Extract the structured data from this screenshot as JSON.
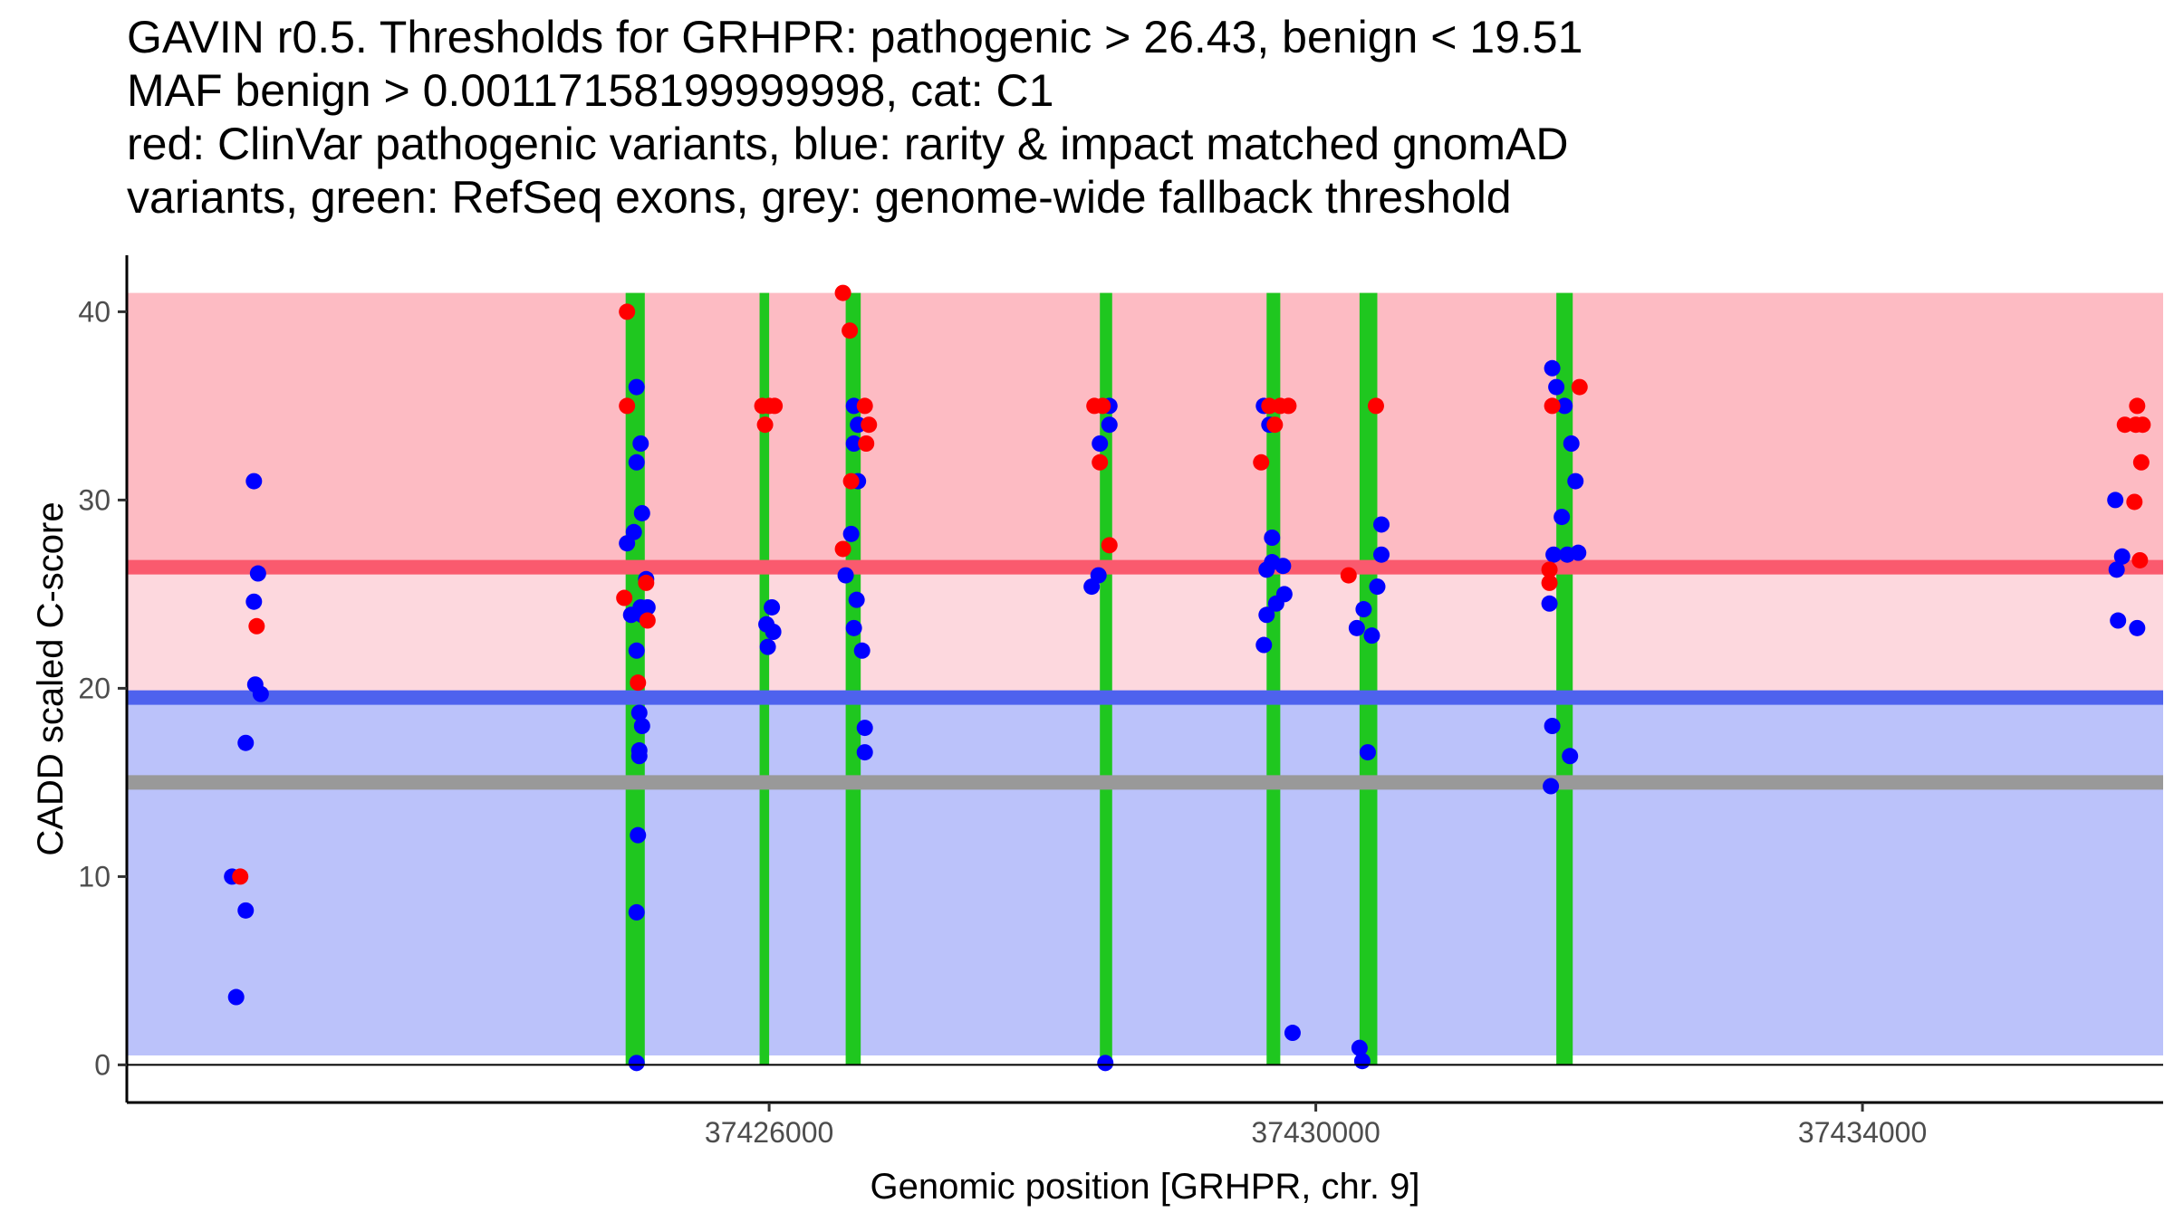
{
  "chart_data": {
    "type": "scatter",
    "title_lines": [
      "GAVIN r0.5. Thresholds for GRHPR: pathogenic > 26.43, benign < 19.51",
      "MAF benign > 0.00117158199999998, cat: C1",
      "red: ClinVar pathogenic variants, blue: rarity & impact matched gnomAD",
      "variants, green: RefSeq exons, grey: genome-wide fallback threshold"
    ],
    "xlabel": "Genomic position [GRHPR, chr. 9]",
    "ylabel": "CADD scaled C-score",
    "xlim": [
      37421300,
      37436200
    ],
    "ylim": [
      -2,
      43
    ],
    "x_ticks": [
      37426000,
      37430000,
      37434000
    ],
    "x_tick_labels": [
      "37426000",
      "37430000",
      "37434000"
    ],
    "y_ticks": [
      0,
      10,
      20,
      30,
      40
    ],
    "y_tick_labels": [
      "0",
      "10",
      "20",
      "30",
      "40"
    ],
    "regions": {
      "pathogenic": {
        "from": 26.43,
        "to": 41,
        "color": "#fdbbc3"
      },
      "middle": {
        "from": 19.51,
        "to": 26.43,
        "color": "#fdd8de"
      },
      "benign": {
        "from": 0.5,
        "to": 19.51,
        "color": "#bbc2fa"
      }
    },
    "threshold_lines": [
      {
        "name": "pathogenic-threshold",
        "y": 26.43,
        "color": "#fa5a6e"
      },
      {
        "name": "benign-threshold",
        "y": 19.51,
        "color": "#4e62ee"
      },
      {
        "name": "fallback-threshold",
        "y": 15,
        "color": "#999999"
      }
    ],
    "exons": [
      {
        "start": 37424950,
        "end": 37425090
      },
      {
        "start": 37425930,
        "end": 37426000
      },
      {
        "start": 37426560,
        "end": 37426670
      },
      {
        "start": 37428420,
        "end": 37428510
      },
      {
        "start": 37429640,
        "end": 37429740
      },
      {
        "start": 37430320,
        "end": 37430450
      },
      {
        "start": 37431760,
        "end": 37431880
      }
    ],
    "series": [
      {
        "name": "gnomAD",
        "color": "#0000ff",
        "points": [
          [
            37422230,
            31
          ],
          [
            37422260,
            26.1
          ],
          [
            37422230,
            24.6
          ],
          [
            37422240,
            20.2
          ],
          [
            37422280,
            19.7
          ],
          [
            37422170,
            17.1
          ],
          [
            37422070,
            10
          ],
          [
            37422170,
            8.2
          ],
          [
            37422100,
            3.6
          ],
          [
            37424960,
            27.7
          ],
          [
            37425010,
            28.3
          ],
          [
            37425030,
            36
          ],
          [
            37425060,
            33
          ],
          [
            37425030,
            32
          ],
          [
            37425070,
            29.3
          ],
          [
            37425100,
            25.8
          ],
          [
            37424990,
            23.9
          ],
          [
            37425060,
            24.3
          ],
          [
            37425110,
            24.3
          ],
          [
            37425070,
            23.9
          ],
          [
            37425030,
            22
          ],
          [
            37425050,
            18.7
          ],
          [
            37425070,
            18
          ],
          [
            37425050,
            16.7
          ],
          [
            37425050,
            16.4
          ],
          [
            37425040,
            12.2
          ],
          [
            37425030,
            8.1
          ],
          [
            37425030,
            0.1
          ],
          [
            37426020,
            24.3
          ],
          [
            37425980,
            23.4
          ],
          [
            37426030,
            23
          ],
          [
            37425990,
            22.2
          ],
          [
            37426620,
            35
          ],
          [
            37426650,
            34
          ],
          [
            37426620,
            33
          ],
          [
            37426600,
            28.2
          ],
          [
            37426650,
            31
          ],
          [
            37426560,
            26
          ],
          [
            37426640,
            24.7
          ],
          [
            37426620,
            23.2
          ],
          [
            37426680,
            22
          ],
          [
            37426700,
            17.9
          ],
          [
            37426700,
            16.6
          ],
          [
            37428420,
            33
          ],
          [
            37428490,
            34
          ],
          [
            37428490,
            35
          ],
          [
            37428410,
            26
          ],
          [
            37428360,
            25.4
          ],
          [
            37428460,
            0.1
          ],
          [
            37429620,
            35
          ],
          [
            37429660,
            34
          ],
          [
            37429680,
            28
          ],
          [
            37429640,
            26.3
          ],
          [
            37429680,
            26.7
          ],
          [
            37429760,
            26.5
          ],
          [
            37429770,
            25
          ],
          [
            37429710,
            24.5
          ],
          [
            37429640,
            23.9
          ],
          [
            37429620,
            22.3
          ],
          [
            37429830,
            1.7
          ],
          [
            37430480,
            28.7
          ],
          [
            37430480,
            27.1
          ],
          [
            37430450,
            25.4
          ],
          [
            37430350,
            24.2
          ],
          [
            37430300,
            23.2
          ],
          [
            37430410,
            22.8
          ],
          [
            37430380,
            16.6
          ],
          [
            37430320,
            0.9
          ],
          [
            37430340,
            0.2
          ],
          [
            37431730,
            37
          ],
          [
            37431760,
            36
          ],
          [
            37431820,
            35
          ],
          [
            37431870,
            33
          ],
          [
            37431900,
            31
          ],
          [
            37431800,
            29.1
          ],
          [
            37431740,
            27.1
          ],
          [
            37431840,
            27.1
          ],
          [
            37431920,
            27.2
          ],
          [
            37431710,
            24.5
          ],
          [
            37431730,
            18
          ],
          [
            37431860,
            16.4
          ],
          [
            37431720,
            14.8
          ],
          [
            37435850,
            30
          ],
          [
            37435900,
            27
          ],
          [
            37435860,
            26.3
          ],
          [
            37435870,
            23.6
          ],
          [
            37436010,
            23.2
          ]
        ]
      },
      {
        "name": "ClinVar pathogenic",
        "color": "#ff0000",
        "points": [
          [
            37422250,
            23.3
          ],
          [
            37422130,
            10
          ],
          [
            37424960,
            40
          ],
          [
            37424960,
            35
          ],
          [
            37424940,
            24.8
          ],
          [
            37425040,
            20.3
          ],
          [
            37425100,
            25.6
          ],
          [
            37425110,
            23.6
          ],
          [
            37425950,
            35
          ],
          [
            37426000,
            35
          ],
          [
            37426040,
            35
          ],
          [
            37425970,
            34
          ],
          [
            37426540,
            41
          ],
          [
            37426590,
            39
          ],
          [
            37426700,
            35
          ],
          [
            37426730,
            34
          ],
          [
            37426710,
            33
          ],
          [
            37426600,
            31
          ],
          [
            37426540,
            27.4
          ],
          [
            37428380,
            35
          ],
          [
            37428440,
            35
          ],
          [
            37428420,
            32
          ],
          [
            37428490,
            27.6
          ],
          [
            37429660,
            35
          ],
          [
            37429740,
            35
          ],
          [
            37429800,
            35
          ],
          [
            37429700,
            34
          ],
          [
            37429600,
            32
          ],
          [
            37430240,
            26
          ],
          [
            37430440,
            35
          ],
          [
            37431730,
            35
          ],
          [
            37431930,
            36
          ],
          [
            37431710,
            26.3
          ],
          [
            37431710,
            25.6
          ],
          [
            37435920,
            34
          ],
          [
            37436000,
            34
          ],
          [
            37436050,
            34
          ],
          [
            37436010,
            35
          ],
          [
            37436040,
            32
          ],
          [
            37435990,
            29.9
          ],
          [
            37436030,
            26.8
          ]
        ]
      }
    ]
  }
}
